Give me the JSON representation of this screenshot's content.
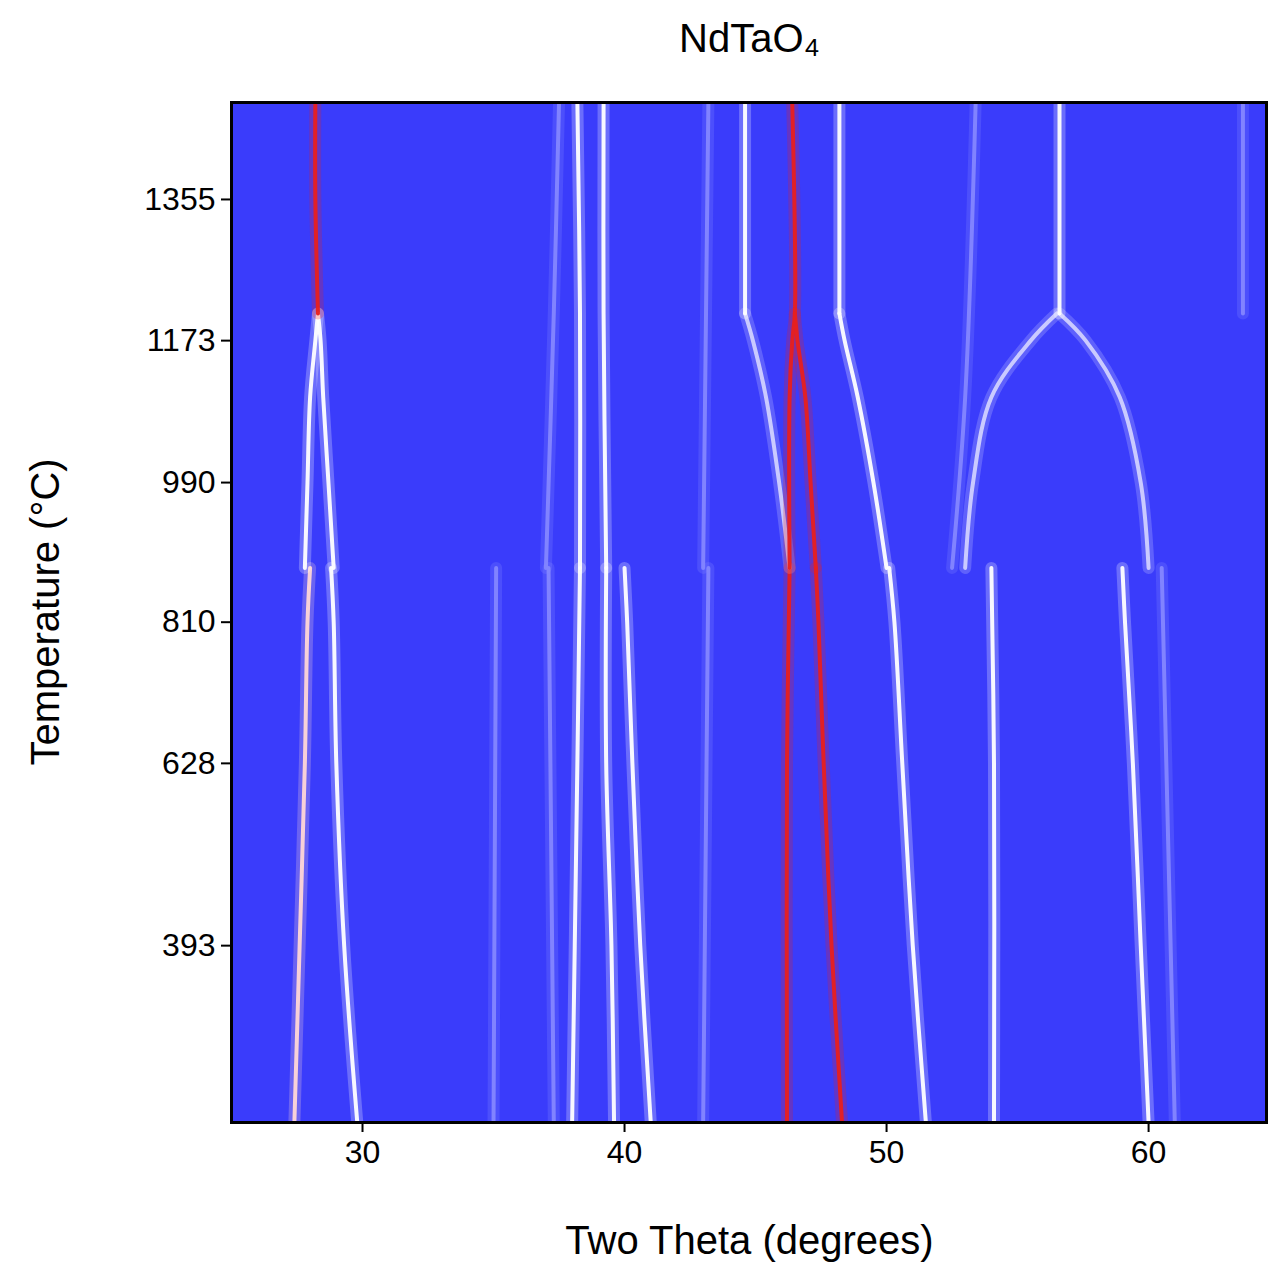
{
  "chart_data": {
    "type": "line",
    "title": "NdTaO₄",
    "x_label": "Two Theta (degrees)",
    "y_label": "Temperature (°C)",
    "xlim": [
      25,
      64.5
    ],
    "xticks": [
      30,
      40,
      50,
      60
    ],
    "ylim": [
      165,
      1480
    ],
    "yticks": [
      393,
      628,
      810,
      990,
      1173,
      1355
    ],
    "grid": false,
    "series": [
      {
        "color": "#ffd6d6",
        "x": [
          27.4,
          27.6,
          27.8,
          27.9,
          28.0
        ],
        "y": [
          165,
          393,
          628,
          810,
          880
        ]
      },
      {
        "color": "#ffffff",
        "x": [
          29.8,
          29.3,
          29.0,
          28.9,
          28.8
        ],
        "y": [
          165,
          393,
          628,
          810,
          880
        ]
      },
      {
        "color": "#8486ff",
        "x": [
          35.0,
          35.1
        ],
        "y": [
          165,
          880
        ]
      },
      {
        "color": "#8486ff",
        "x": [
          37.3,
          37.1
        ],
        "y": [
          165,
          880
        ]
      },
      {
        "color": "#ffffff",
        "x": [
          38.0,
          38.1,
          38.2,
          38.3
        ],
        "y": [
          165,
          393,
          628,
          880
        ]
      },
      {
        "color": "#ffffff",
        "x": [
          39.6,
          39.5,
          39.3,
          39.3
        ],
        "y": [
          165,
          393,
          628,
          880
        ]
      },
      {
        "color": "#ffffff",
        "x": [
          41.0,
          40.6,
          40.3,
          40.1,
          40.0
        ],
        "y": [
          165,
          393,
          628,
          810,
          880
        ]
      },
      {
        "color": "#8486ff",
        "x": [
          43.0,
          43.2
        ],
        "y": [
          165,
          880
        ]
      },
      {
        "color": "#e8201e",
        "x": [
          46.2,
          46.2,
          46.3
        ],
        "y": [
          165,
          628,
          880
        ]
      },
      {
        "color": "#e8201e",
        "x": [
          48.3,
          47.9,
          47.6,
          47.4,
          47.3
        ],
        "y": [
          165,
          393,
          628,
          810,
          880
        ]
      },
      {
        "color": "#ffffff",
        "x": [
          51.5,
          51.0,
          50.6,
          50.3,
          50.1
        ],
        "y": [
          165,
          393,
          628,
          810,
          880
        ]
      },
      {
        "color": "#ffffff",
        "x": [
          54.1,
          54.1,
          54.0
        ],
        "y": [
          165,
          628,
          880
        ]
      },
      {
        "color": "#ffffff",
        "x": [
          60.0,
          59.7,
          59.4,
          59.1,
          59.0
        ],
        "y": [
          165,
          393,
          628,
          810,
          880
        ]
      },
      {
        "color": "#8486ff",
        "x": [
          61.0,
          60.5
        ],
        "y": [
          165,
          880
        ]
      },
      {
        "color": "#ffffff",
        "x": [
          27.8,
          27.9,
          28.0,
          28.2,
          28.3
        ],
        "y": [
          880,
          990,
          1100,
          1173,
          1208
        ]
      },
      {
        "color": "#ffffff",
        "x": [
          28.9,
          28.7,
          28.5,
          28.4,
          28.3
        ],
        "y": [
          880,
          990,
          1100,
          1173,
          1208
        ]
      },
      {
        "color": "#e8201e",
        "x": [
          28.3,
          28.2,
          28.2
        ],
        "y": [
          1208,
          1355,
          1480
        ]
      },
      {
        "color": "#8486ff",
        "x": [
          37.0,
          37.3,
          37.5
        ],
        "y": [
          880,
          1208,
          1480
        ]
      },
      {
        "color": "#ffffff",
        "x": [
          38.3,
          38.3,
          38.2
        ],
        "y": [
          880,
          1208,
          1480
        ]
      },
      {
        "color": "#ffffff",
        "x": [
          39.3,
          39.2,
          39.2
        ],
        "y": [
          880,
          1208,
          1480
        ]
      },
      {
        "color": "#8486ff",
        "x": [
          43.0,
          43.2
        ],
        "y": [
          880,
          1480
        ]
      },
      {
        "color": "#d0d0ff",
        "x": [
          46.3,
          45.9,
          45.4,
          44.9,
          44.6
        ],
        "y": [
          880,
          990,
          1100,
          1173,
          1208
        ]
      },
      {
        "color": "#ffffff",
        "x": [
          44.6,
          44.6
        ],
        "y": [
          1208,
          1480
        ]
      },
      {
        "color": "#e8201e",
        "x": [
          46.3,
          46.3,
          46.4,
          46.5,
          46.4
        ],
        "y": [
          880,
          1100,
          1173,
          1208,
          1480
        ]
      },
      {
        "color": "#e8201e",
        "x": [
          47.3,
          47.1,
          46.9,
          46.6,
          46.5
        ],
        "y": [
          880,
          990,
          1100,
          1173,
          1208
        ]
      },
      {
        "color": "#ffffff",
        "x": [
          50.0,
          49.5,
          48.9,
          48.4,
          48.2
        ],
        "y": [
          880,
          990,
          1100,
          1173,
          1208
        ]
      },
      {
        "color": "#ffffff",
        "x": [
          48.2,
          48.2
        ],
        "y": [
          1208,
          1480
        ]
      },
      {
        "color": "#d0d0ff",
        "x": [
          53.0,
          53.3,
          54.0,
          55.5,
          56.5
        ],
        "y": [
          880,
          990,
          1100,
          1173,
          1208
        ]
      },
      {
        "color": "#d0d0ff",
        "x": [
          60.0,
          59.7,
          58.9,
          57.6,
          56.6
        ],
        "y": [
          880,
          990,
          1100,
          1173,
          1208
        ]
      },
      {
        "color": "#ffffff",
        "x": [
          56.6,
          56.6
        ],
        "y": [
          1208,
          1480
        ]
      },
      {
        "color": "#8486ff",
        "x": [
          52.5,
          53.0,
          53.4
        ],
        "y": [
          880,
          1100,
          1480
        ]
      },
      {
        "color": "#8486ff",
        "x": [
          63.6,
          63.6
        ],
        "y": [
          1208,
          1480
        ]
      }
    ]
  }
}
